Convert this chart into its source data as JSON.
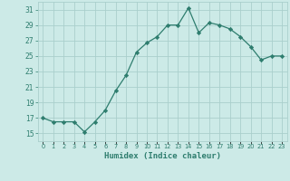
{
  "xlabel": "Humidex (Indice chaleur)",
  "x": [
    0,
    1,
    2,
    3,
    4,
    5,
    6,
    7,
    8,
    9,
    10,
    11,
    12,
    13,
    14,
    15,
    16,
    17,
    18,
    19,
    20,
    21,
    22,
    23
  ],
  "y": [
    17,
    16.5,
    16.5,
    16.5,
    15.2,
    16.5,
    18.0,
    20.5,
    22.5,
    25.5,
    26.7,
    27.5,
    29.0,
    29.0,
    31.2,
    28.0,
    29.3,
    29.0,
    28.5,
    27.5,
    26.2,
    24.5,
    25.0,
    25.0
  ],
  "line_color": "#2e7d6e",
  "marker": "D",
  "marker_size": 2.2,
  "bg_color": "#cceae7",
  "grid_color": "#aacfcc",
  "tick_color": "#2e7d6e",
  "label_color": "#2e7d6e",
  "ylim": [
    14.0,
    32.0
  ],
  "yticks": [
    15,
    17,
    19,
    21,
    23,
    25,
    27,
    29,
    31
  ],
  "xlim": [
    -0.5,
    23.5
  ]
}
